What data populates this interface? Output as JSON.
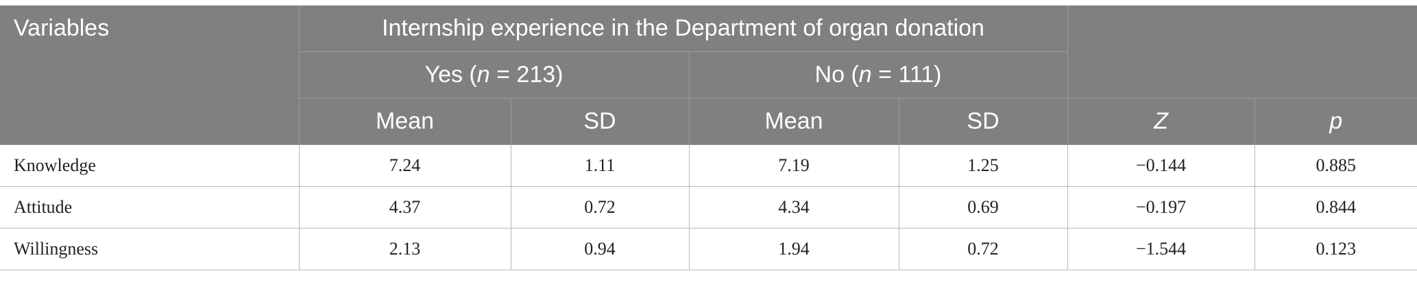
{
  "table": {
    "header": {
      "variables_label": "Variables",
      "group_title": "Internship experience in the Department of organ donation",
      "yes_prefix": "Yes (",
      "yes_n_symbol": "n",
      "yes_n_value": " = 213)",
      "no_prefix": "No (",
      "no_n_symbol": "n",
      "no_n_value": " = 111)",
      "mean_label": "Mean",
      "sd_label": "SD",
      "z_label": "Z",
      "p_label": "p"
    },
    "rows": [
      {
        "variable": "Knowledge",
        "yes_mean": "7.24",
        "yes_sd": "1.11",
        "no_mean": "7.19",
        "no_sd": "1.25",
        "z": "−0.144",
        "p": "0.885"
      },
      {
        "variable": "Attitude",
        "yes_mean": "4.37",
        "yes_sd": "0.72",
        "no_mean": "4.34",
        "no_sd": "0.69",
        "z": "−0.197",
        "p": "0.844"
      },
      {
        "variable": "Willingness",
        "yes_mean": "2.13",
        "yes_sd": "0.94",
        "no_mean": "1.94",
        "no_sd": "0.72",
        "z": "−1.544",
        "p": "0.123"
      }
    ]
  }
}
